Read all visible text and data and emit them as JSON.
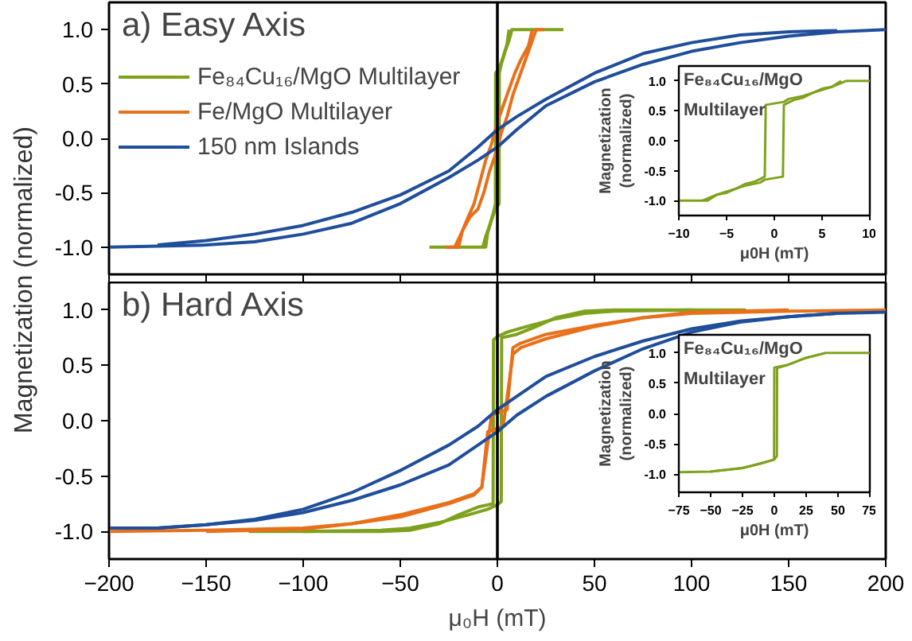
{
  "chart_data": [
    {
      "type": "line",
      "title": "a) Easy Axis",
      "xlim": [
        -200,
        200
      ],
      "ylim": [
        -1.25,
        1.25
      ],
      "xticks": [
        -200,
        -150,
        -100,
        -50,
        0,
        50,
        100,
        150,
        200
      ],
      "yticks": [
        {
          "value": -1,
          "label": "-1.0"
        },
        {
          "value": -0.5,
          "label": "-0.5"
        },
        {
          "value": 0,
          "label": "0.0"
        },
        {
          "value": 0.5,
          "label": "0.5"
        },
        {
          "value": 1,
          "label": "1.0"
        }
      ],
      "tick_labels": "y",
      "legend": "top left",
      "ref_lines": [
        {
          "axis": "x",
          "value": 0,
          "color": "#000000"
        }
      ],
      "series": [
        {
          "name": "Fe₈₄Cu₁₆/MgO Multilayer",
          "color": "#7fa21d",
          "x": [
            -35,
            -6,
            -5,
            -3,
            -1,
            0.9,
            1,
            2,
            4,
            6,
            7.5,
            34
          ],
          "values": [
            -1,
            -1,
            -0.87,
            -0.75,
            -0.65,
            -0.6,
            0.6,
            0.68,
            0.8,
            0.9,
            1,
            1
          ]
        },
        {
          "color": "#7fa21d",
          "x": [
            -7.5,
            -6,
            -4,
            -2,
            -1,
            -0.9,
            1,
            3,
            5,
            6
          ],
          "values": [
            -1,
            -0.9,
            -0.8,
            -0.68,
            -0.6,
            0.6,
            0.65,
            0.75,
            0.87,
            1
          ]
        },
        {
          "name": "Fe/MgO Multilayer",
          "color": "#e8701a",
          "x": [
            -27,
            -20,
            -18,
            -14,
            -10,
            -7,
            -4,
            -1,
            2,
            5,
            8,
            11,
            14,
            17,
            20,
            24
          ],
          "values": [
            -1,
            -1,
            -0.85,
            -0.72,
            -0.65,
            -0.5,
            -0.3,
            -0.15,
            0.05,
            0.2,
            0.4,
            0.55,
            0.7,
            0.85,
            1,
            1
          ]
        },
        {
          "color": "#e8701a",
          "x": [
            -22,
            -18,
            -15,
            -12,
            -9,
            -6,
            -3,
            0,
            3,
            6,
            9,
            12,
            16,
            18
          ],
          "values": [
            -1,
            -0.85,
            -0.72,
            -0.6,
            -0.4,
            -0.2,
            -0.05,
            0.15,
            0.3,
            0.45,
            0.6,
            0.72,
            0.85,
            1
          ]
        },
        {
          "name": "150 nm Islands",
          "color": "#1f4e9b",
          "x": [
            -200,
            -175,
            -150,
            -125,
            -100,
            -75,
            -50,
            -25,
            -10,
            0,
            10,
            25,
            50,
            75,
            100,
            125,
            150,
            175,
            200
          ],
          "values": [
            -1,
            -0.99,
            -0.98,
            -0.95,
            -0.88,
            -0.78,
            -0.6,
            -0.36,
            -0.2,
            -0.08,
            0.08,
            0.3,
            0.52,
            0.68,
            0.8,
            0.88,
            0.94,
            0.98,
            1
          ]
        },
        {
          "color": "#1f4e9b",
          "x": [
            -175,
            -150,
            -125,
            -100,
            -75,
            -50,
            -25,
            -10,
            0,
            10,
            25,
            50,
            75,
            100,
            125,
            150,
            175
          ],
          "values": [
            -0.98,
            -0.94,
            -0.88,
            -0.8,
            -0.68,
            -0.52,
            -0.3,
            -0.08,
            0.08,
            0.2,
            0.36,
            0.6,
            0.78,
            0.88,
            0.95,
            0.98,
            0.99
          ]
        }
      ]
    },
    {
      "type": "line",
      "title": "b) Hard Axis",
      "xlabel": "μ₀H (mT)",
      "ylabel": "Magnetization (normalized)",
      "xlim": [
        -200,
        200
      ],
      "ylim": [
        -1.25,
        1.25
      ],
      "xticks": [
        -200,
        -150,
        -100,
        -50,
        0,
        50,
        100,
        150,
        200
      ],
      "yticks": [
        {
          "value": -1,
          "label": "-1.0"
        },
        {
          "value": -0.5,
          "label": "-0.5"
        },
        {
          "value": 0,
          "label": "0.0"
        },
        {
          "value": 0.5,
          "label": "0.5"
        },
        {
          "value": 1,
          "label": "1.0"
        }
      ],
      "ref_lines": [
        {
          "axis": "x",
          "value": 0,
          "color": "#000000"
        }
      ],
      "series": [
        {
          "color": "#7fa21d",
          "x": [
            -128,
            -100,
            -60,
            -45,
            -30,
            -15,
            -5,
            0,
            2,
            2.2,
            10,
            20,
            30,
            45,
            60,
            100,
            128
          ],
          "values": [
            -1,
            -1,
            -0.99,
            -0.97,
            -0.92,
            -0.85,
            -0.8,
            -0.76,
            -0.73,
            0.75,
            0.78,
            0.85,
            0.93,
            0.99,
            1,
            1,
            1
          ]
        },
        {
          "color": "#7fa21d",
          "x": [
            -100,
            -60,
            -45,
            -30,
            -20,
            -10,
            -2.2,
            -2,
            0,
            5,
            15,
            30,
            45,
            60,
            100
          ],
          "values": [
            -1,
            -1,
            -0.99,
            -0.93,
            -0.85,
            -0.78,
            -0.75,
            0.73,
            0.76,
            0.8,
            0.85,
            0.92,
            0.97,
            0.99,
            1
          ]
        },
        {
          "color": "#e8701a",
          "x": [
            -200,
            -150,
            -100,
            -75,
            -50,
            -25,
            -12,
            -8,
            -5,
            0,
            3,
            8,
            12,
            25,
            50,
            75,
            100,
            150,
            200
          ],
          "values": [
            -1,
            -0.99,
            -0.97,
            -0.93,
            -0.85,
            -0.74,
            -0.66,
            -0.6,
            -0.1,
            -0.07,
            -0.05,
            0.6,
            0.66,
            0.74,
            0.85,
            0.93,
            0.97,
            0.99,
            1
          ]
        },
        {
          "color": "#e8701a",
          "x": [
            -150,
            -100,
            -75,
            -50,
            -25,
            -12,
            -8,
            -3,
            0,
            5,
            8,
            12,
            25,
            50,
            75,
            100,
            150
          ],
          "values": [
            -1,
            -0.98,
            -0.93,
            -0.87,
            -0.75,
            -0.67,
            -0.6,
            0.05,
            0.07,
            0.1,
            0.66,
            0.7,
            0.78,
            0.86,
            0.93,
            0.98,
            1
          ]
        },
        {
          "color": "#1f4e9b",
          "x": [
            -200,
            -175,
            -150,
            -125,
            -100,
            -75,
            -50,
            -25,
            -10,
            0,
            10,
            25,
            50,
            75,
            100,
            125,
            150,
            175,
            200
          ],
          "values": [
            -0.97,
            -0.97,
            -0.94,
            -0.9,
            -0.83,
            -0.72,
            -0.58,
            -0.4,
            -0.22,
            -0.1,
            0.05,
            0.22,
            0.45,
            0.65,
            0.8,
            0.89,
            0.94,
            0.97,
            0.98
          ]
        },
        {
          "color": "#1f4e9b",
          "x": [
            -175,
            -150,
            -125,
            -100,
            -75,
            -50,
            -25,
            -10,
            0,
            10,
            25,
            50,
            75,
            100,
            125,
            150,
            175
          ],
          "values": [
            -0.97,
            -0.94,
            -0.89,
            -0.8,
            -0.65,
            -0.45,
            -0.22,
            -0.05,
            0.1,
            0.22,
            0.4,
            0.58,
            0.72,
            0.83,
            0.9,
            0.94,
            0.97
          ]
        }
      ]
    },
    {
      "type": "line",
      "title": "Fe₈₄Cu₁₆/MgO\nMultilayer",
      "xlabel": "μ0H (mT)",
      "ylabel": "Magnetization\n(normalized)",
      "xlim": [
        -10,
        10
      ],
      "ylim": [
        -1.25,
        1.25
      ],
      "xticks": [
        -10,
        -5,
        0,
        5,
        10
      ],
      "yticks": [
        {
          "value": -1,
          "label": "-1.0"
        },
        {
          "value": -0.5,
          "label": "-0.5"
        },
        {
          "value": 0,
          "label": "0.0"
        },
        {
          "value": 0.5,
          "label": "0.5"
        },
        {
          "value": 1,
          "label": "1.0"
        }
      ],
      "series": [
        {
          "color": "#7fa21d",
          "x": [
            -10,
            -7,
            -6,
            -5,
            -4,
            -3,
            -1.5,
            -1,
            0.9,
            1,
            2,
            3,
            4,
            5,
            6,
            7.5,
            10
          ],
          "values": [
            -1,
            -1,
            -0.9,
            -0.87,
            -0.8,
            -0.75,
            -0.7,
            -0.65,
            -0.6,
            0.6,
            0.68,
            0.72,
            0.8,
            0.85,
            0.9,
            1,
            1
          ]
        },
        {
          "color": "#7fa21d",
          "x": [
            -7.5,
            -6,
            -5,
            -4,
            -3,
            -2,
            -1,
            -0.9,
            1,
            1.5,
            3,
            4,
            5,
            6,
            7
          ],
          "values": [
            -1,
            -0.9,
            -0.85,
            -0.8,
            -0.72,
            -0.68,
            -0.6,
            0.6,
            0.65,
            0.7,
            0.75,
            0.8,
            0.87,
            0.9,
            1
          ]
        }
      ]
    },
    {
      "type": "line",
      "title": "Fe₈₄Cu₁₆/MgO\nMultilayer",
      "xlabel": "μ0H (mT)",
      "ylabel": "Magnetization\n(normalized)",
      "xlim": [
        -75,
        75
      ],
      "ylim": [
        -1.3,
        1.3
      ],
      "xticks": [
        -75,
        -50,
        -25,
        0,
        25,
        50,
        75
      ],
      "yticks": [
        {
          "value": -1,
          "label": "-1.0"
        },
        {
          "value": -0.5,
          "label": "-0.5"
        },
        {
          "value": 0,
          "label": "0.0"
        },
        {
          "value": 0.5,
          "label": "0.5"
        },
        {
          "value": 1,
          "label": "1.0"
        }
      ],
      "series": [
        {
          "color": "#7fa21d",
          "x": [
            -75,
            -50,
            -25,
            -10,
            0,
            2,
            2.2,
            10,
            25,
            40,
            75
          ],
          "values": [
            -0.97,
            -0.96,
            -0.9,
            -0.82,
            -0.76,
            -0.7,
            0.75,
            0.8,
            0.92,
            1,
            1
          ]
        },
        {
          "color": "#7fa21d",
          "x": [
            -50,
            -25,
            -10,
            -0.2,
            0,
            10,
            25,
            40
          ],
          "values": [
            -0.96,
            -0.9,
            -0.82,
            -0.76,
            0.76,
            0.8,
            0.92,
            1
          ]
        }
      ]
    }
  ]
}
